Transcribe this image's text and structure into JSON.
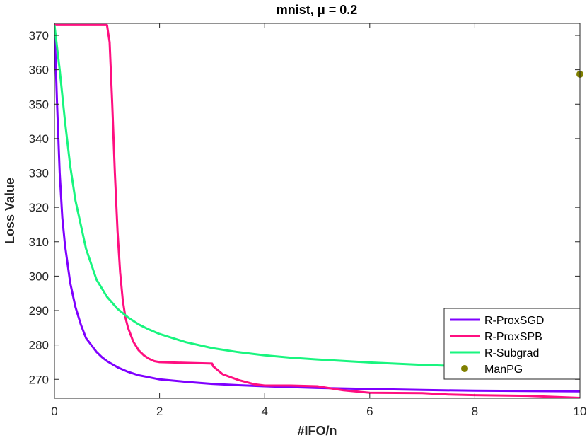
{
  "chart_data": {
    "type": "line",
    "title": "mnist, μ = 0.2",
    "xlabel": "#IFO/n",
    "ylabel": "Loss Value",
    "xlim": [
      0,
      10
    ],
    "ylim": [
      264.5,
      373.5
    ],
    "xticks": [
      0,
      2,
      4,
      6,
      8,
      10
    ],
    "yticks": [
      270,
      280,
      290,
      300,
      310,
      320,
      330,
      340,
      350,
      360,
      370
    ],
    "grid": false,
    "legend_position": "bottom-right",
    "series": [
      {
        "name": "R-ProxSGD",
        "color": "#7f00ff",
        "marker": "none",
        "x": [
          0,
          0.05,
          0.1,
          0.15,
          0.2,
          0.3,
          0.4,
          0.5,
          0.6,
          0.7,
          0.8,
          0.9,
          1.0,
          1.2,
          1.4,
          1.6,
          1.8,
          2.0,
          2.5,
          3.0,
          3.5,
          4.0,
          5.0,
          6.0,
          7.0,
          8.0,
          9.0,
          10.0
        ],
        "y": [
          373,
          350,
          330,
          317,
          309,
          298,
          291,
          286,
          282,
          280,
          278,
          276.5,
          275.3,
          273.5,
          272.2,
          271.2,
          270.6,
          270.0,
          269.3,
          268.7,
          268.3,
          268.0,
          267.5,
          267.2,
          266.9,
          266.7,
          266.6,
          266.5
        ]
      },
      {
        "name": "R-ProxSPB",
        "color": "#ff0f80",
        "marker": "none",
        "x": [
          0,
          0.5,
          1.0,
          1.05,
          1.1,
          1.15,
          1.2,
          1.25,
          1.3,
          1.35,
          1.4,
          1.5,
          1.6,
          1.7,
          1.8,
          1.9,
          2.0,
          2.5,
          3.0,
          3.02,
          3.2,
          3.5,
          3.8,
          4.0,
          4.5,
          5.0,
          5.5,
          6.0,
          7.0,
          7.5,
          8.0,
          9.0,
          10.0
        ],
        "y": [
          373,
          373,
          373,
          368,
          350,
          330,
          313,
          301,
          293,
          288,
          285,
          281,
          278.5,
          277,
          276,
          275.3,
          275,
          274.8,
          274.6,
          273.8,
          271.5,
          269.8,
          268.6,
          268.2,
          268.2,
          268.0,
          266.8,
          266.1,
          266.0,
          265.6,
          265.4,
          265.2,
          264.6
        ]
      },
      {
        "name": "R-Subgrad",
        "color": "#19f57f",
        "marker": "none",
        "x": [
          0,
          0.1,
          0.2,
          0.3,
          0.4,
          0.6,
          0.8,
          1.0,
          1.2,
          1.4,
          1.6,
          1.8,
          2.0,
          2.5,
          3.0,
          3.5,
          4.0,
          4.5,
          5.0,
          6.0,
          7.0,
          8.0,
          9.0,
          10.0
        ],
        "y": [
          373,
          360,
          345,
          332,
          322,
          308,
          299,
          294,
          290.5,
          288,
          286,
          284.5,
          283.2,
          280.8,
          279.1,
          277.9,
          277.0,
          276.3,
          275.8,
          274.9,
          274.2,
          273.7,
          273.3,
          273.0
        ]
      },
      {
        "name": "ManPG",
        "color": "#808000",
        "marker": "dot",
        "x": [
          10
        ],
        "y": [
          358.7
        ]
      }
    ]
  }
}
